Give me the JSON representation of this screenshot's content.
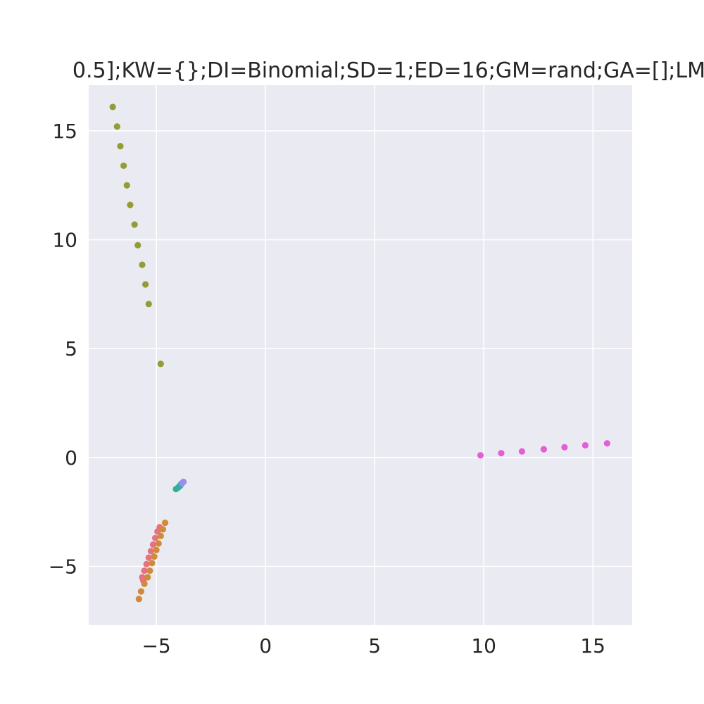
{
  "chart_data": {
    "type": "scatter",
    "title": "0.5];KW={};DI=Binomial;SD=1;ED=16;GM=rand;GA=[];LM",
    "xlabel": "",
    "ylabel": "",
    "xlim": [
      -8.1,
      16.8
    ],
    "ylim": [
      -7.7,
      17.1
    ],
    "xticks": [
      -5,
      0,
      5,
      10,
      15
    ],
    "yticks": [
      -5,
      0,
      5,
      10,
      15
    ],
    "xtick_labels": [
      "−5",
      "0",
      "5",
      "10",
      "15"
    ],
    "ytick_labels": [
      "−5",
      "0",
      "5",
      "10",
      "15"
    ],
    "grid": true,
    "legend": "none",
    "background_color": "#eaeaf2",
    "grid_color": "#ffffff",
    "series": [
      {
        "color": "#e5737e",
        "points": [
          [
            -5.65,
            -5.5
          ],
          [
            -5.55,
            -5.2
          ],
          [
            -5.45,
            -4.9
          ],
          [
            -5.35,
            -4.6
          ],
          [
            -5.25,
            -4.3
          ],
          [
            -5.15,
            -4.0
          ],
          [
            -5.05,
            -3.7
          ],
          [
            -4.95,
            -3.4
          ],
          [
            -4.85,
            -3.2
          ],
          [
            -5.6,
            -5.65
          ]
        ]
      },
      {
        "color": "#cf8a3a",
        "points": [
          [
            -5.8,
            -6.5
          ],
          [
            -5.7,
            -6.15
          ],
          [
            -5.55,
            -5.8
          ],
          [
            -5.4,
            -5.5
          ],
          [
            -5.3,
            -5.2
          ],
          [
            -5.2,
            -4.85
          ],
          [
            -5.1,
            -4.55
          ],
          [
            -5.0,
            -4.25
          ],
          [
            -4.9,
            -3.95
          ],
          [
            -4.8,
            -3.6
          ],
          [
            -4.7,
            -3.3
          ],
          [
            -4.6,
            -3.0
          ]
        ]
      },
      {
        "color": "#939c35",
        "points": [
          [
            -7.0,
            16.1
          ],
          [
            -6.8,
            15.2
          ],
          [
            -6.65,
            14.3
          ],
          [
            -6.5,
            13.4
          ],
          [
            -6.35,
            12.5
          ],
          [
            -6.2,
            11.6
          ],
          [
            -6.0,
            10.7
          ],
          [
            -5.85,
            9.75
          ],
          [
            -5.65,
            8.85
          ],
          [
            -5.5,
            7.95
          ],
          [
            -5.35,
            7.05
          ],
          [
            -4.8,
            4.3
          ]
        ]
      },
      {
        "color": "#33ae9a",
        "points": [
          [
            -4.1,
            -1.45
          ],
          [
            -4.0,
            -1.38
          ],
          [
            -3.95,
            -1.33
          ],
          [
            -3.9,
            -1.28
          ]
        ]
      },
      {
        "color": "#3aa7c3",
        "points": [
          [
            -3.88,
            -1.24
          ],
          [
            -3.85,
            -1.2
          ]
        ]
      },
      {
        "color": "#9a8ee6",
        "points": [
          [
            -3.82,
            -1.17
          ],
          [
            -3.76,
            -1.12
          ]
        ]
      },
      {
        "color": "#e35fd6",
        "points": [
          [
            9.85,
            0.1
          ],
          [
            10.8,
            0.2
          ],
          [
            11.75,
            0.28
          ],
          [
            12.75,
            0.38
          ],
          [
            13.7,
            0.47
          ],
          [
            14.65,
            0.56
          ],
          [
            15.65,
            0.65
          ]
        ]
      }
    ]
  }
}
